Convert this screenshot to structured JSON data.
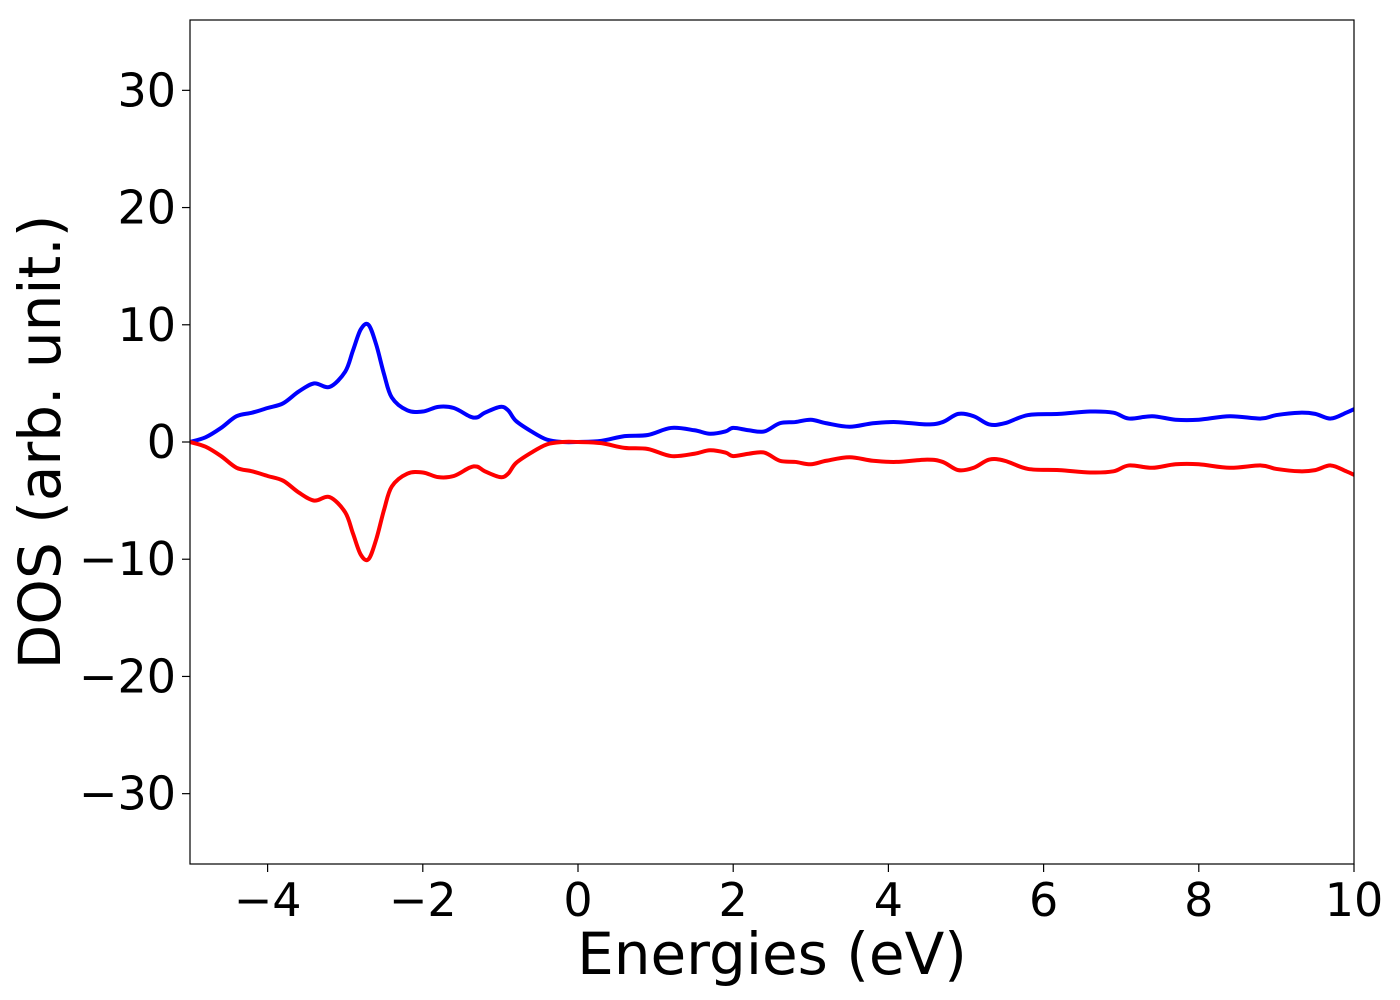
{
  "chart_data": {
    "type": "line",
    "title": "",
    "xlabel": "Energies (eV)",
    "ylabel": "DOS (arb. unit.)",
    "xlim": [
      -5,
      10
    ],
    "ylim": [
      -36,
      36
    ],
    "xticks": [
      -4,
      -2,
      0,
      2,
      4,
      6,
      8,
      10
    ],
    "xtick_labels": [
      "−4",
      "−2",
      "0",
      "2",
      "4",
      "6",
      "8",
      "10"
    ],
    "yticks": [
      -30,
      -20,
      -10,
      0,
      10,
      20,
      30
    ],
    "ytick_labels": [
      "−30",
      "−20",
      "−10",
      "0",
      "10",
      "20",
      "30"
    ],
    "grid": false,
    "x": [
      -5.0,
      -4.8,
      -4.6,
      -4.4,
      -4.2,
      -4.0,
      -3.8,
      -3.6,
      -3.4,
      -3.2,
      -3.0,
      -2.9,
      -2.8,
      -2.7,
      -2.6,
      -2.5,
      -2.4,
      -2.2,
      -2.0,
      -1.8,
      -1.6,
      -1.4,
      -1.3,
      -1.2,
      -1.0,
      -0.9,
      -0.8,
      -0.6,
      -0.4,
      -0.2,
      0.0,
      0.3,
      0.6,
      0.9,
      1.2,
      1.5,
      1.7,
      1.9,
      2.0,
      2.2,
      2.4,
      2.6,
      2.8,
      3.0,
      3.2,
      3.5,
      3.8,
      4.1,
      4.5,
      4.7,
      4.9,
      5.1,
      5.3,
      5.5,
      5.8,
      6.2,
      6.6,
      6.9,
      7.1,
      7.4,
      7.7,
      8.0,
      8.4,
      8.8,
      9.0,
      9.3,
      9.5,
      9.7,
      9.9,
      10.0
    ],
    "series": [
      {
        "color": "#0000ff",
        "values": [
          0.0,
          0.4,
          1.2,
          2.2,
          2.5,
          2.9,
          3.3,
          4.3,
          5.0,
          4.7,
          6.0,
          7.8,
          9.6,
          10.0,
          8.3,
          5.8,
          3.8,
          2.7,
          2.6,
          3.0,
          2.9,
          2.2,
          2.1,
          2.5,
          3.0,
          2.7,
          1.8,
          0.9,
          0.2,
          0.0,
          0.0,
          0.1,
          0.5,
          0.6,
          1.2,
          1.0,
          0.7,
          0.9,
          1.2,
          1.0,
          0.9,
          1.6,
          1.7,
          1.9,
          1.6,
          1.3,
          1.6,
          1.7,
          1.5,
          1.7,
          2.4,
          2.2,
          1.5,
          1.6,
          2.3,
          2.4,
          2.6,
          2.5,
          2.0,
          2.2,
          1.9,
          1.9,
          2.2,
          2.0,
          2.3,
          2.5,
          2.4,
          2.0,
          2.5,
          2.8
        ]
      },
      {
        "color": "#ff0000",
        "values": [
          0.0,
          -0.4,
          -1.2,
          -2.2,
          -2.5,
          -2.9,
          -3.3,
          -4.3,
          -5.0,
          -4.7,
          -6.0,
          -7.8,
          -9.6,
          -10.0,
          -8.3,
          -5.8,
          -3.8,
          -2.7,
          -2.6,
          -3.0,
          -2.9,
          -2.2,
          -2.1,
          -2.5,
          -3.0,
          -2.7,
          -1.8,
          -0.9,
          -0.2,
          0.0,
          0.0,
          -0.1,
          -0.5,
          -0.6,
          -1.2,
          -1.0,
          -0.7,
          -0.9,
          -1.2,
          -1.0,
          -0.9,
          -1.6,
          -1.7,
          -1.9,
          -1.6,
          -1.3,
          -1.6,
          -1.7,
          -1.5,
          -1.7,
          -2.4,
          -2.2,
          -1.5,
          -1.6,
          -2.3,
          -2.4,
          -2.6,
          -2.5,
          -2.0,
          -2.2,
          -1.9,
          -1.9,
          -2.2,
          -2.0,
          -2.3,
          -2.5,
          -2.4,
          -2.0,
          -2.5,
          -2.8
        ]
      }
    ]
  }
}
